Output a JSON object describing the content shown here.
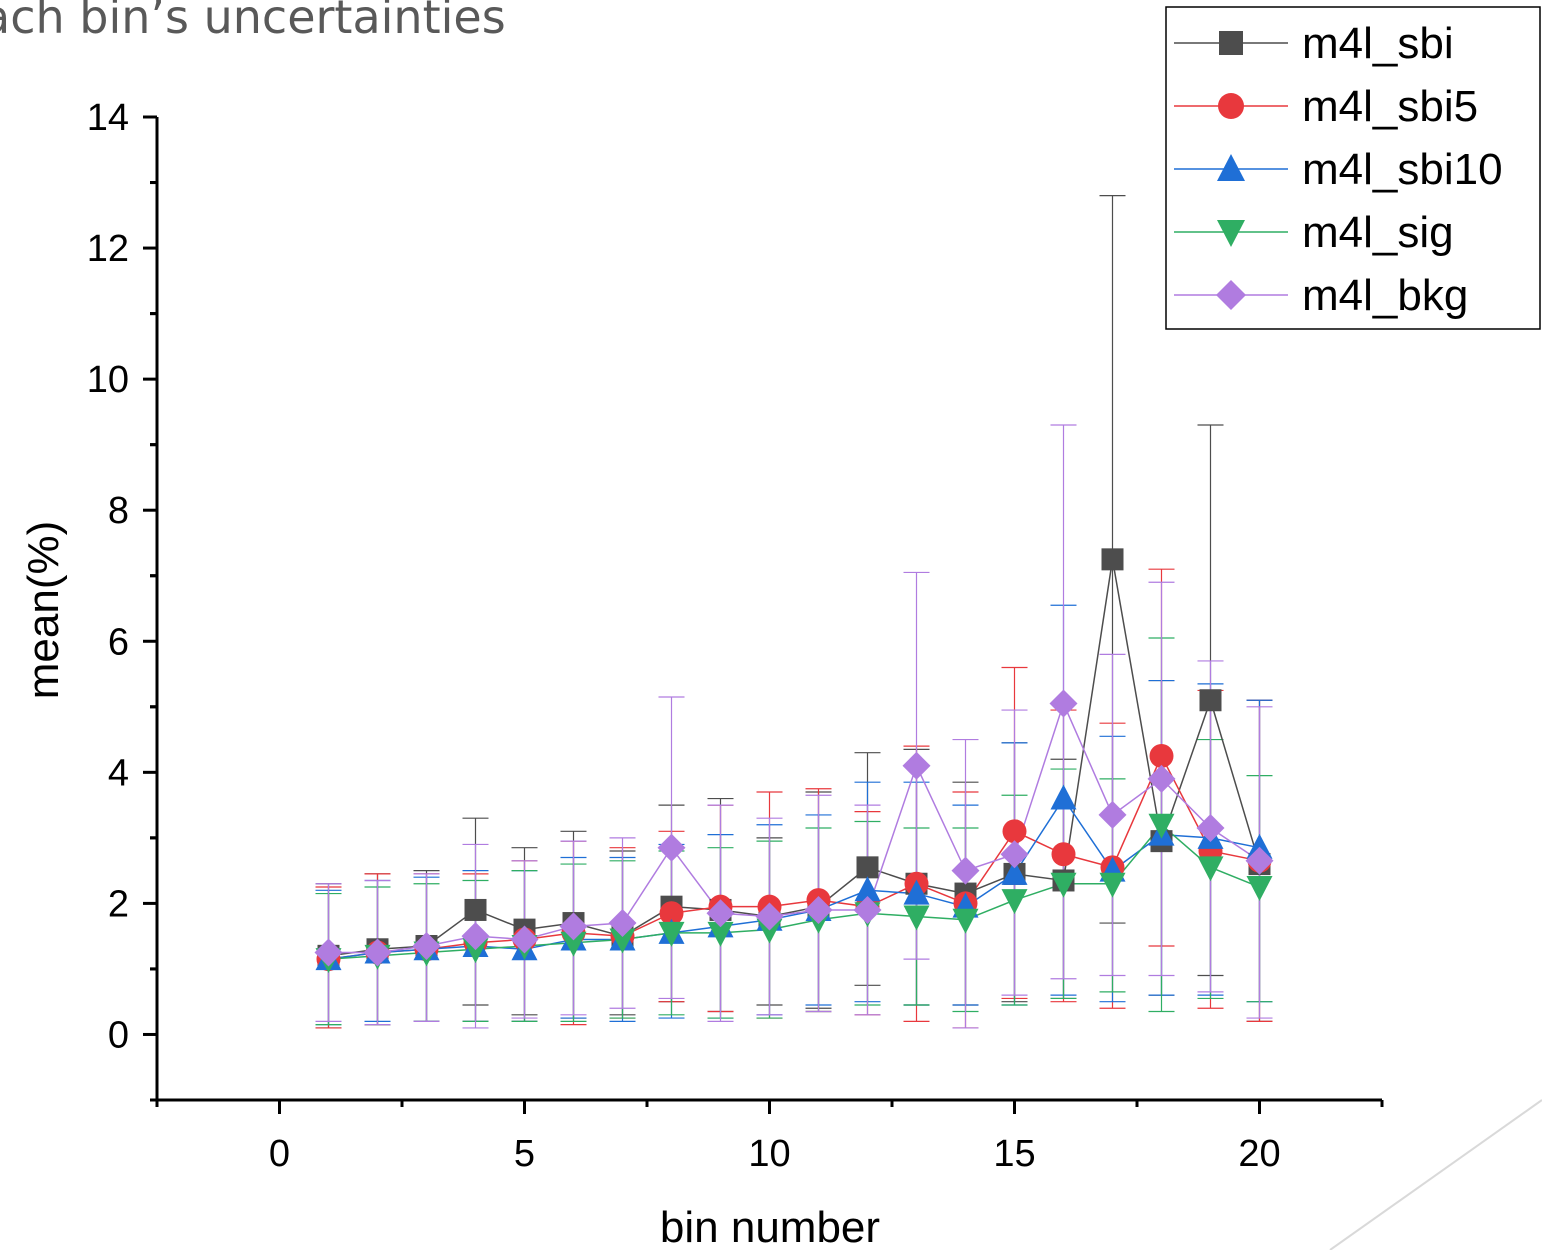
{
  "slide": {
    "title": "ach bin’s uncertainties"
  },
  "chart_data": {
    "type": "line",
    "title": "",
    "xlabel": "bin number",
    "ylabel": "mean(%)",
    "xlim": [
      -2.5,
      22.5
    ],
    "ylim": [
      -1,
      14
    ],
    "x_ticks": [
      0,
      5,
      10,
      15,
      20
    ],
    "y_ticks": [
      0,
      2,
      4,
      6,
      8,
      10,
      12,
      14
    ],
    "grid": false,
    "legend_position": "top-right",
    "x": [
      1,
      2,
      3,
      4,
      5,
      6,
      7,
      8,
      9,
      10,
      11,
      12,
      13,
      14,
      15,
      16,
      17,
      18,
      19,
      20
    ],
    "series": [
      {
        "name": "m4l_sbi",
        "color": "#4d4d4d",
        "marker": "square",
        "values": [
          1.2,
          1.3,
          1.35,
          1.9,
          1.6,
          1.7,
          1.5,
          1.95,
          1.9,
          1.8,
          1.95,
          2.55,
          2.3,
          2.15,
          2.45,
          2.35,
          7.25,
          2.95,
          5.1,
          2.6
        ],
        "err_low": [
          1.1,
          1.15,
          1.15,
          1.45,
          1.3,
          1.45,
          1.2,
          1.45,
          1.55,
          1.35,
          1.55,
          1.8,
          1.85,
          1.7,
          1.95,
          1.8,
          5.55,
          2.35,
          4.2,
          2.4
        ],
        "err_high": [
          1.1,
          1.15,
          1.15,
          1.4,
          1.25,
          1.4,
          1.3,
          1.55,
          1.7,
          1.2,
          1.75,
          1.75,
          2.05,
          1.7,
          2.0,
          1.85,
          5.55,
          2.45,
          4.2,
          2.5
        ]
      },
      {
        "name": "m4l_sbi5",
        "color": "#e8383d",
        "marker": "circle",
        "values": [
          1.15,
          1.25,
          1.3,
          1.4,
          1.45,
          1.55,
          1.5,
          1.85,
          1.95,
          1.95,
          2.05,
          1.95,
          2.3,
          2.0,
          3.1,
          2.75,
          2.55,
          4.25,
          2.8,
          2.65
        ],
        "err_low": [
          1.05,
          1.1,
          1.1,
          1.2,
          1.25,
          1.4,
          1.25,
          1.35,
          1.6,
          1.7,
          1.7,
          1.65,
          2.1,
          1.9,
          2.55,
          2.25,
          2.15,
          2.9,
          2.4,
          2.45
        ],
        "err_high": [
          1.1,
          1.2,
          1.15,
          1.05,
          1.2,
          1.4,
          1.35,
          1.25,
          1.55,
          1.75,
          1.7,
          1.45,
          2.1,
          1.7,
          2.5,
          2.2,
          2.2,
          2.85,
          2.45,
          2.45
        ]
      },
      {
        "name": "m4l_sbi10",
        "color": "#1f6fd6",
        "marker": "triangle-up",
        "values": [
          1.15,
          1.25,
          1.3,
          1.35,
          1.3,
          1.45,
          1.45,
          1.55,
          1.65,
          1.75,
          1.9,
          2.2,
          2.15,
          1.95,
          2.45,
          3.6,
          2.5,
          3.05,
          3.0,
          2.85
        ],
        "err_low": [
          1.0,
          1.05,
          1.1,
          1.15,
          1.1,
          1.2,
          1.25,
          1.3,
          1.4,
          1.45,
          1.45,
          1.7,
          1.7,
          1.5,
          2.0,
          3.0,
          2.0,
          2.45,
          2.4,
          2.35
        ],
        "err_high": [
          1.05,
          1.1,
          1.1,
          1.15,
          1.2,
          1.25,
          1.25,
          1.35,
          1.4,
          1.45,
          1.45,
          1.65,
          1.7,
          1.55,
          2.0,
          2.95,
          2.05,
          2.35,
          2.35,
          2.25
        ]
      },
      {
        "name": "m4l_sig",
        "color": "#2fae63",
        "marker": "triangle-down",
        "values": [
          1.15,
          1.2,
          1.25,
          1.3,
          1.35,
          1.4,
          1.45,
          1.55,
          1.55,
          1.6,
          1.75,
          1.85,
          1.8,
          1.75,
          2.05,
          2.3,
          2.3,
          3.2,
          2.55,
          2.25
        ],
        "err_low": [
          1.0,
          1.05,
          1.05,
          1.1,
          1.15,
          1.2,
          1.2,
          1.25,
          1.3,
          1.35,
          1.4,
          1.4,
          1.35,
          1.4,
          1.6,
          1.75,
          1.65,
          2.85,
          2.0,
          1.75
        ],
        "err_high": [
          1.0,
          1.05,
          1.05,
          1.05,
          1.15,
          1.2,
          1.2,
          1.25,
          1.3,
          1.35,
          1.4,
          1.4,
          1.35,
          1.4,
          1.6,
          1.75,
          1.6,
          2.85,
          1.95,
          1.7
        ]
      },
      {
        "name": "m4l_bkg",
        "color": "#b07ce0",
        "marker": "diamond",
        "values": [
          1.25,
          1.25,
          1.35,
          1.5,
          1.45,
          1.65,
          1.7,
          2.85,
          1.85,
          1.8,
          1.9,
          1.9,
          4.1,
          2.5,
          2.75,
          5.05,
          3.35,
          3.9,
          3.15,
          2.65
        ],
        "err_low": [
          1.05,
          1.1,
          1.15,
          1.4,
          1.2,
          1.35,
          1.3,
          2.3,
          1.65,
          1.5,
          1.55,
          1.6,
          2.95,
          2.4,
          2.15,
          4.2,
          2.45,
          3.0,
          2.5,
          2.4
        ],
        "err_high": [
          1.05,
          1.1,
          1.1,
          1.4,
          1.2,
          1.3,
          1.3,
          2.3,
          1.65,
          1.5,
          1.75,
          1.6,
          2.95,
          2.0,
          2.2,
          4.25,
          2.45,
          3.0,
          2.55,
          2.35
        ]
      }
    ]
  }
}
